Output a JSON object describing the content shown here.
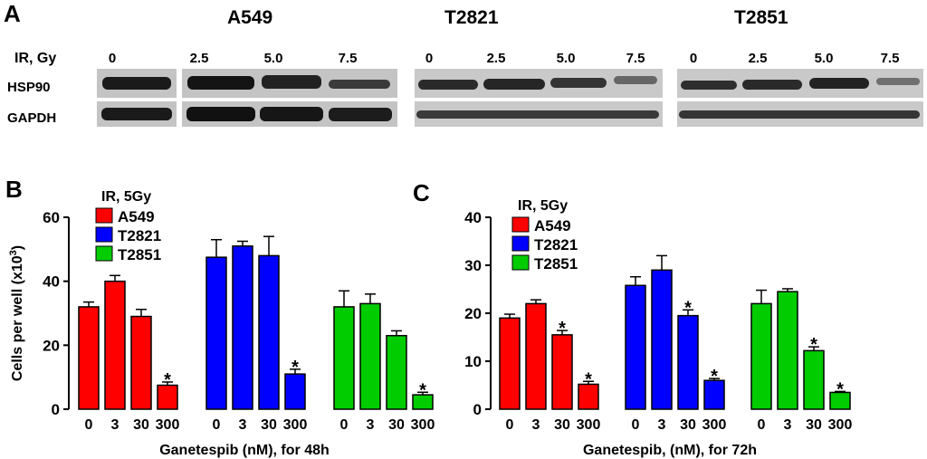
{
  "panel_a": {
    "letter": "A",
    "row_label_dose": "IR, Gy",
    "row_label_hsp90": "HSP90",
    "row_label_gapdh": "GAPDH",
    "cell_lines": [
      {
        "name": "A549",
        "doses": [
          "0",
          "2.5",
          "5.0",
          "7.5"
        ]
      },
      {
        "name": "T2821",
        "doses": [
          "0",
          "2.5",
          "5.0",
          "7.5"
        ]
      },
      {
        "name": "T2851",
        "doses": [
          "0",
          "2.5",
          "5.0",
          "7.5"
        ]
      }
    ]
  },
  "chart_data": [
    {
      "type": "bar",
      "panel_letter": "B",
      "xlabel": "Ganetespib (nM), for 48h",
      "ylabel": "Cells per well (x10",
      "ylabel_superscript": "3",
      "ylabel_close": ")",
      "ylim": [
        0,
        60
      ],
      "yticks": [
        "0",
        "20",
        "40",
        "60"
      ],
      "legend_title": "IR, 5Gy",
      "categories": [
        "0",
        "3",
        "30",
        "300"
      ],
      "series": [
        {
          "name": "A549",
          "color": "#ff0000",
          "values": [
            32,
            40,
            29,
            7.5
          ],
          "errors": [
            1.5,
            1.8,
            2.2,
            1.0
          ],
          "significant": [
            false,
            false,
            false,
            true
          ]
        },
        {
          "name": "T2821",
          "color": "#0000ff",
          "values": [
            47.5,
            51,
            48,
            11
          ],
          "errors": [
            5.5,
            1.5,
            6,
            1.5
          ],
          "significant": [
            false,
            false,
            false,
            true
          ]
        },
        {
          "name": "T2851",
          "color": "#00cc00",
          "values": [
            32,
            33,
            23,
            4.5
          ],
          "errors": [
            5,
            3,
            1.5,
            0.8
          ],
          "significant": [
            false,
            false,
            false,
            true
          ]
        }
      ],
      "marker": "*"
    },
    {
      "type": "bar",
      "panel_letter": "C",
      "xlabel": "Ganetespib, (nM), for 72h",
      "ylabel": "",
      "ylim": [
        0,
        40
      ],
      "yticks": [
        "0",
        "10",
        "20",
        "30",
        "40"
      ],
      "legend_title": "IR, 5Gy",
      "categories": [
        "0",
        "3",
        "30",
        "300"
      ],
      "series": [
        {
          "name": "A549",
          "color": "#ff0000",
          "values": [
            19,
            22,
            15.5,
            5.2
          ],
          "errors": [
            0.8,
            0.8,
            0.9,
            0.6
          ],
          "significant": [
            false,
            false,
            true,
            true
          ]
        },
        {
          "name": "T2821",
          "color": "#0000ff",
          "values": [
            25.8,
            29,
            19.5,
            6
          ],
          "errors": [
            1.8,
            3,
            1.2,
            0.4
          ],
          "significant": [
            false,
            false,
            true,
            true
          ]
        },
        {
          "name": "T2851",
          "color": "#00cc00",
          "values": [
            22,
            24.5,
            12.2,
            3.5
          ],
          "errors": [
            2.8,
            0.6,
            0.8,
            0.2
          ],
          "significant": [
            false,
            false,
            true,
            true
          ]
        }
      ],
      "marker": "*"
    }
  ]
}
